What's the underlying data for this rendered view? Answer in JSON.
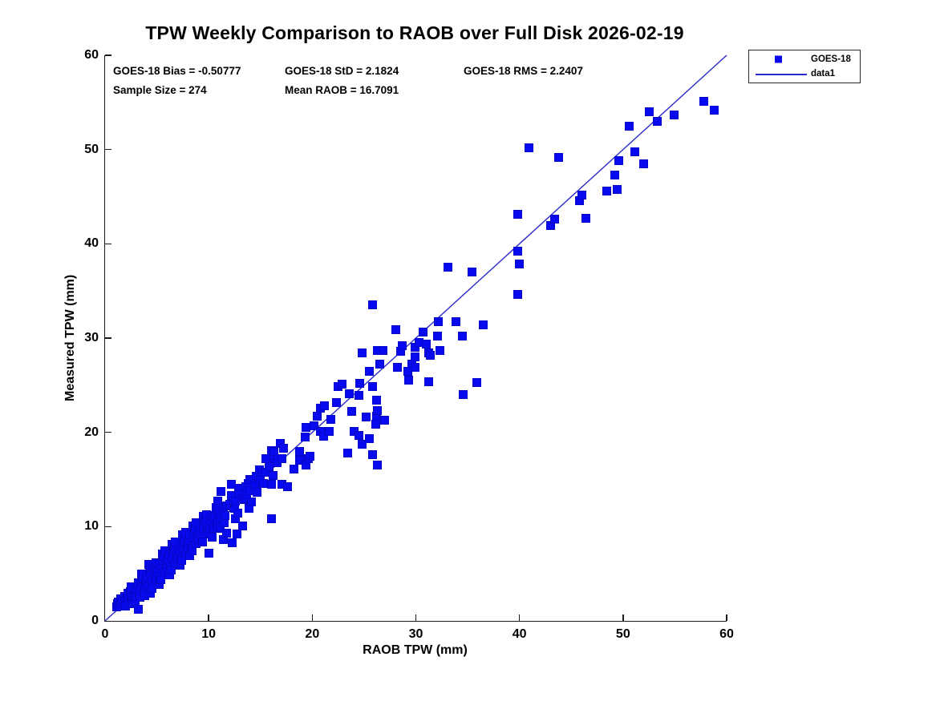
{
  "title": "TPW Weekly Comparison to RAOB over Full Disk 2026-02-19",
  "stats": {
    "bias": "GOES-18 Bias = -0.50777",
    "std": "GOES-18 StD = 2.1824",
    "rms": "GOES-18 RMS = 2.2407",
    "sample_size": "Sample Size = 274",
    "mean_raob": "Mean RAOB = 16.7091"
  },
  "legend": {
    "items": [
      {
        "label": "GOES-18",
        "type": "marker"
      },
      {
        "label": "data1",
        "type": "line"
      }
    ]
  },
  "colors": {
    "marker": "#0909ef",
    "line": "#2a2ac8",
    "axis": "#1a1a1a",
    "text": "#000000"
  },
  "chart_data": {
    "type": "scatter",
    "title": "TPW Weekly Comparison to RAOB over Full Disk 2026-02-19",
    "xlabel": "RAOB TPW (mm)",
    "ylabel": "Measured TPW (mm)",
    "xlim": [
      0,
      60
    ],
    "ylim": [
      0,
      60
    ],
    "xticks": [
      0,
      10,
      20,
      30,
      40,
      50,
      60
    ],
    "yticks": [
      0,
      10,
      20,
      30,
      40,
      50,
      60
    ],
    "grid": false,
    "legend_position": "top-right-outside",
    "line": {
      "name": "data1",
      "points": [
        [
          0,
          0
        ],
        [
          60,
          60
        ]
      ]
    },
    "series": [
      {
        "name": "GOES-18",
        "marker": "square",
        "points": [
          [
            1.1,
            1.5
          ],
          [
            1.2,
            1.8
          ],
          [
            1.3,
            2.0
          ],
          [
            1.4,
            1.6
          ],
          [
            1.5,
            2.3
          ],
          [
            1.6,
            2.1
          ],
          [
            1.8,
            1.7
          ],
          [
            1.9,
            2.6
          ],
          [
            2.0,
            2.2
          ],
          [
            2.0,
            1.6
          ],
          [
            2.1,
            2.4
          ],
          [
            2.2,
            2.9
          ],
          [
            2.3,
            1.9
          ],
          [
            2.4,
            3.1
          ],
          [
            2.5,
            2.5
          ],
          [
            2.5,
            3.6
          ],
          [
            2.6,
            2.2
          ],
          [
            2.7,
            1.8
          ],
          [
            2.8,
            2.7
          ],
          [
            2.9,
            3.3
          ],
          [
            2.9,
            2.0
          ],
          [
            3.0,
            2.6
          ],
          [
            3.1,
            3.4
          ],
          [
            3.2,
            4.0
          ],
          [
            3.2,
            1.2
          ],
          [
            3.3,
            2.9
          ],
          [
            3.4,
            2.5
          ],
          [
            3.5,
            3.6
          ],
          [
            3.5,
            5.0
          ],
          [
            3.6,
            4.2
          ],
          [
            3.7,
            4.5
          ],
          [
            3.8,
            3.3
          ],
          [
            3.8,
            2.7
          ],
          [
            3.9,
            3.9
          ],
          [
            4.0,
            4.3
          ],
          [
            4.1,
            4.6
          ],
          [
            4.2,
            3.7
          ],
          [
            4.2,
            6.0
          ],
          [
            4.3,
            5.4
          ],
          [
            4.4,
            4.9
          ],
          [
            4.4,
            2.9
          ],
          [
            4.5,
            4.2
          ],
          [
            4.5,
            3.4
          ],
          [
            4.6,
            5.1
          ],
          [
            4.7,
            5.7
          ],
          [
            4.8,
            4.5
          ],
          [
            4.9,
            5.3
          ],
          [
            4.9,
            6.2
          ],
          [
            5.0,
            4.8
          ],
          [
            5.1,
            5.5
          ],
          [
            5.2,
            6.1
          ],
          [
            5.2,
            3.9
          ],
          [
            5.3,
            4.7
          ],
          [
            5.4,
            4.4
          ],
          [
            5.5,
            5.8
          ],
          [
            5.5,
            7.1
          ],
          [
            5.6,
            6.4
          ],
          [
            5.7,
            6.8
          ],
          [
            5.8,
            5.2
          ],
          [
            5.8,
            7.4
          ],
          [
            5.9,
            6.0
          ],
          [
            6.0,
            5.6
          ],
          [
            6.1,
            6.5
          ],
          [
            6.2,
            7.1
          ],
          [
            6.2,
            4.9
          ],
          [
            6.3,
            5.7
          ],
          [
            6.4,
            5.4
          ],
          [
            6.5,
            6.8
          ],
          [
            6.5,
            8.1
          ],
          [
            6.6,
            7.4
          ],
          [
            6.7,
            7.8
          ],
          [
            6.8,
            6.2
          ],
          [
            6.8,
            8.4
          ],
          [
            6.9,
            7.0
          ],
          [
            7.0,
            6.6
          ],
          [
            7.1,
            7.5
          ],
          [
            7.2,
            8.1
          ],
          [
            7.2,
            5.9
          ],
          [
            7.3,
            6.7
          ],
          [
            7.4,
            6.4
          ],
          [
            7.5,
            7.8
          ],
          [
            7.5,
            9.1
          ],
          [
            7.6,
            8.4
          ],
          [
            7.7,
            8.8
          ],
          [
            7.8,
            7.2
          ],
          [
            7.8,
            9.4
          ],
          [
            7.9,
            8.0
          ],
          [
            8.0,
            7.6
          ],
          [
            8.1,
            8.5
          ],
          [
            8.2,
            9.1
          ],
          [
            8.2,
            6.9
          ],
          [
            8.3,
            7.7
          ],
          [
            8.4,
            7.4
          ],
          [
            8.5,
            8.8
          ],
          [
            8.5,
            10.1
          ],
          [
            8.6,
            9.4
          ],
          [
            8.7,
            9.8
          ],
          [
            8.8,
            8.2
          ],
          [
            8.8,
            10.4
          ],
          [
            8.9,
            9.0
          ],
          [
            9.0,
            8.6
          ],
          [
            9.1,
            9.5
          ],
          [
            9.2,
            10.1
          ],
          [
            9.3,
            8.7
          ],
          [
            9.4,
            8.4
          ],
          [
            9.5,
            9.8
          ],
          [
            9.5,
            11.1
          ],
          [
            9.6,
            10.4
          ],
          [
            9.7,
            10.8
          ],
          [
            9.8,
            9.2
          ],
          [
            9.8,
            11.3
          ],
          [
            9.9,
            10.0
          ],
          [
            10.0,
            9.6
          ],
          [
            10.0,
            7.2
          ],
          [
            10.1,
            9.3
          ],
          [
            10.2,
            10.6
          ],
          [
            10.3,
            8.9
          ],
          [
            10.4,
            11.2
          ],
          [
            10.5,
            9.8
          ],
          [
            10.6,
            10.9
          ],
          [
            10.7,
            12.0
          ],
          [
            10.8,
            10.3
          ],
          [
            10.9,
            11.8
          ],
          [
            10.9,
            12.7
          ],
          [
            10.9,
            11.9
          ],
          [
            10.9,
            10.4
          ],
          [
            10.9,
            9.8
          ],
          [
            11.0,
            11.5
          ],
          [
            11.1,
            9.9
          ],
          [
            11.2,
            10.9
          ],
          [
            11.2,
            13.7
          ],
          [
            11.4,
            11.6
          ],
          [
            11.4,
            8.6
          ],
          [
            11.5,
            10.4
          ],
          [
            11.6,
            11.2
          ],
          [
            11.7,
            12.2
          ],
          [
            11.7,
            9.3
          ],
          [
            12.0,
            12.4
          ],
          [
            12.2,
            13.3
          ],
          [
            12.2,
            14.5
          ],
          [
            12.3,
            8.3
          ],
          [
            12.4,
            12.0
          ],
          [
            12.5,
            11.9
          ],
          [
            12.6,
            12.7
          ],
          [
            12.6,
            10.8
          ],
          [
            12.7,
            9.2
          ],
          [
            12.8,
            11.4
          ],
          [
            12.9,
            14.1
          ],
          [
            13.0,
            13.5
          ],
          [
            13.3,
            12.9
          ],
          [
            13.3,
            10.1
          ],
          [
            13.5,
            13.0
          ],
          [
            13.6,
            14.2
          ],
          [
            13.7,
            13.4
          ],
          [
            13.8,
            14.6
          ],
          [
            13.9,
            11.9
          ],
          [
            14.0,
            13.8
          ],
          [
            14.0,
            15.0
          ],
          [
            14.1,
            12.6
          ],
          [
            14.2,
            14.9
          ],
          [
            14.4,
            14.4
          ],
          [
            14.6,
            15.3
          ],
          [
            14.7,
            13.6
          ],
          [
            14.9,
            16.0
          ],
          [
            15.0,
            14.9
          ],
          [
            15.2,
            15.8
          ],
          [
            15.3,
            14.6
          ],
          [
            15.5,
            17.2
          ],
          [
            15.5,
            15.8
          ],
          [
            15.8,
            16.4
          ],
          [
            16.1,
            18.1
          ],
          [
            16.1,
            14.5
          ],
          [
            16.1,
            10.8
          ],
          [
            16.2,
            15.4
          ],
          [
            16.3,
            17.3
          ],
          [
            16.3,
            18.0
          ],
          [
            16.6,
            16.8
          ],
          [
            16.9,
            18.8
          ],
          [
            17.1,
            17.2
          ],
          [
            17.1,
            14.5
          ],
          [
            17.2,
            18.3
          ],
          [
            17.6,
            14.2
          ],
          [
            18.2,
            16.1
          ],
          [
            18.8,
            18.0
          ],
          [
            18.8,
            17.0
          ],
          [
            19.3,
            19.5
          ],
          [
            19.4,
            20.5
          ],
          [
            19.4,
            16.5
          ],
          [
            19.6,
            17.2
          ],
          [
            19.8,
            17.5
          ],
          [
            20.2,
            20.7
          ],
          [
            20.5,
            21.7
          ],
          [
            20.8,
            22.6
          ],
          [
            20.8,
            20.1
          ],
          [
            21.1,
            19.6
          ],
          [
            21.2,
            22.8
          ],
          [
            21.6,
            20.1
          ],
          [
            21.8,
            21.4
          ],
          [
            22.3,
            23.2
          ],
          [
            22.5,
            24.9
          ],
          [
            22.9,
            25.1
          ],
          [
            23.4,
            17.8
          ],
          [
            23.6,
            24.1
          ],
          [
            23.8,
            22.2
          ],
          [
            24.0,
            20.1
          ],
          [
            24.5,
            23.9
          ],
          [
            24.5,
            19.7
          ],
          [
            24.6,
            25.2
          ],
          [
            24.8,
            28.4
          ],
          [
            24.8,
            18.7
          ],
          [
            25.2,
            21.6
          ],
          [
            25.5,
            26.5
          ],
          [
            25.5,
            19.3
          ],
          [
            25.8,
            33.5
          ],
          [
            25.8,
            24.9
          ],
          [
            25.8,
            17.6
          ],
          [
            26.1,
            20.9
          ],
          [
            26.2,
            23.4
          ],
          [
            26.2,
            21.7
          ],
          [
            26.3,
            28.7
          ],
          [
            26.3,
            22.3
          ],
          [
            26.3,
            16.5
          ],
          [
            26.5,
            27.2
          ],
          [
            26.8,
            28.7
          ],
          [
            27.0,
            21.3
          ],
          [
            28.1,
            30.9
          ],
          [
            28.2,
            26.9
          ],
          [
            28.5,
            28.6
          ],
          [
            28.7,
            29.2
          ],
          [
            29.2,
            26.5
          ],
          [
            29.3,
            25.5
          ],
          [
            29.6,
            27.2
          ],
          [
            29.9,
            29.0
          ],
          [
            29.9,
            28.0
          ],
          [
            29.9,
            26.9
          ],
          [
            30.3,
            29.5
          ],
          [
            30.7,
            30.6
          ],
          [
            31.0,
            29.4
          ],
          [
            31.2,
            28.4
          ],
          [
            31.2,
            25.4
          ],
          [
            31.4,
            28.2
          ],
          [
            32.1,
            30.2
          ],
          [
            32.2,
            31.7
          ],
          [
            32.3,
            28.7
          ],
          [
            33.1,
            37.5
          ],
          [
            33.9,
            31.7
          ],
          [
            34.5,
            30.2
          ],
          [
            34.6,
            24.0
          ],
          [
            35.4,
            37.0
          ],
          [
            35.9,
            25.3
          ],
          [
            36.5,
            31.4
          ],
          [
            39.8,
            43.1
          ],
          [
            39.8,
            39.2
          ],
          [
            39.8,
            34.6
          ],
          [
            40.0,
            37.9
          ],
          [
            40.9,
            50.2
          ],
          [
            43.0,
            41.9
          ],
          [
            43.4,
            42.6
          ],
          [
            43.8,
            49.2
          ],
          [
            45.8,
            44.6
          ],
          [
            46.0,
            45.2
          ],
          [
            46.4,
            42.7
          ],
          [
            48.4,
            45.6
          ],
          [
            49.2,
            47.3
          ],
          [
            49.4,
            45.8
          ],
          [
            49.6,
            48.8
          ],
          [
            50.6,
            52.5
          ],
          [
            51.1,
            49.8
          ],
          [
            52.0,
            48.5
          ],
          [
            52.5,
            54.0
          ],
          [
            53.3,
            53.0
          ],
          [
            54.9,
            53.7
          ],
          [
            57.8,
            55.1
          ],
          [
            58.8,
            54.2
          ]
        ]
      }
    ]
  }
}
